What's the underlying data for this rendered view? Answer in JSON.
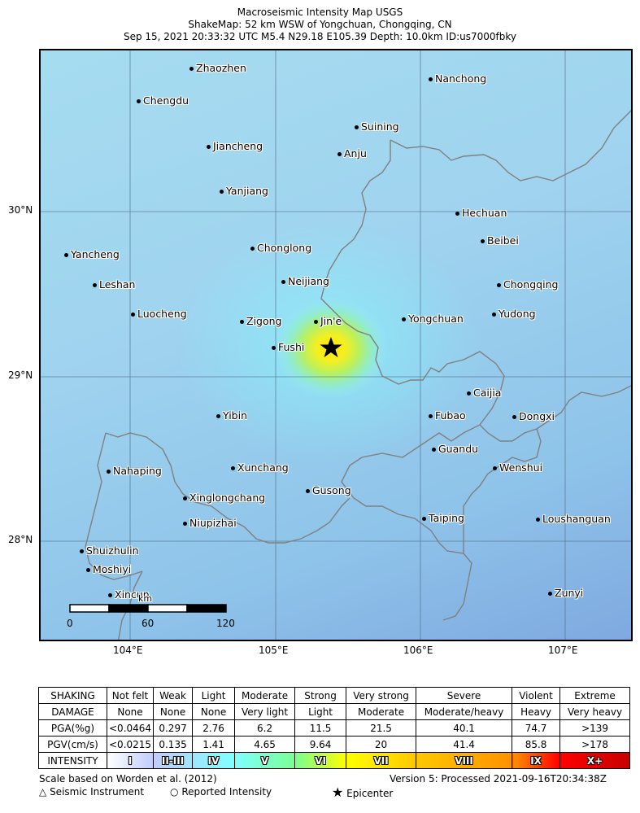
{
  "header": {
    "line1": "Macroseismic Intensity Map USGS",
    "line2": "ShakeMap: 52 km WSW of Yongchuan, Chongqing, CN",
    "line3": "Sep 15, 2021 20:33:32 UTC M5.4 N29.18 E105.39 Depth: 10.0km ID:us7000fbky"
  },
  "map": {
    "lat_labels": [
      "30°N",
      "29°N",
      "28°N"
    ],
    "lon_labels": [
      "104°E",
      "105°E",
      "106°E",
      "107°E"
    ],
    "cities": [
      {
        "name": "Zhaozhen"
      },
      {
        "name": "Nanchong"
      },
      {
        "name": "Chengdu"
      },
      {
        "name": "Suining"
      },
      {
        "name": "Jiancheng"
      },
      {
        "name": "Anju"
      },
      {
        "name": "Yanjiang"
      },
      {
        "name": "Hechuan"
      },
      {
        "name": "Beibei"
      },
      {
        "name": "Chonglong"
      },
      {
        "name": "Yancheng"
      },
      {
        "name": "Neijiang"
      },
      {
        "name": "Leshan"
      },
      {
        "name": "Chongqing"
      },
      {
        "name": "Luocheng"
      },
      {
        "name": "Zigong"
      },
      {
        "name": "Jin'e"
      },
      {
        "name": "Yongchuan"
      },
      {
        "name": "Yudong"
      },
      {
        "name": "Fushi"
      },
      {
        "name": "Caijia"
      },
      {
        "name": "Yibin"
      },
      {
        "name": "Fubao"
      },
      {
        "name": "Dongxi"
      },
      {
        "name": "Guandu"
      },
      {
        "name": "Xunchang"
      },
      {
        "name": "Wenshui"
      },
      {
        "name": "Nahaping"
      },
      {
        "name": "Gusong"
      },
      {
        "name": "Xinglongchang"
      },
      {
        "name": "Taiping"
      },
      {
        "name": "Loushanguan"
      },
      {
        "name": "Niupizhai"
      },
      {
        "name": "Shuizhulin"
      },
      {
        "name": "Moshiyi"
      },
      {
        "name": "Xincun"
      },
      {
        "name": "Zunyi"
      }
    ],
    "scale_bar": {
      "unit": "km",
      "ticks": [
        "0",
        "60",
        "120"
      ]
    }
  },
  "legend": {
    "rows": [
      {
        "label": "SHAKING",
        "cells": [
          "Not felt",
          "Weak",
          "Light",
          "Moderate",
          "Strong",
          "Very strong",
          "Severe",
          "Violent",
          "Extreme"
        ]
      },
      {
        "label": "DAMAGE",
        "cells": [
          "None",
          "None",
          "None",
          "Very light",
          "Light",
          "Moderate",
          "Moderate/heavy",
          "Heavy",
          "Very heavy"
        ]
      },
      {
        "label": "PGA(%g)",
        "cells": [
          "<0.0464",
          "0.297",
          "2.76",
          "6.2",
          "11.5",
          "21.5",
          "40.1",
          "74.7",
          ">139"
        ]
      },
      {
        "label": "PGV(cm/s)",
        "cells": [
          "<0.0215",
          "0.135",
          "1.41",
          "4.65",
          "9.64",
          "20",
          "41.4",
          "85.8",
          ">178"
        ]
      }
    ],
    "intensity_label": "INTENSITY",
    "intensities": [
      "I",
      "II-III",
      "IV",
      "V",
      "VI",
      "VII",
      "VIII",
      "IX",
      "X+"
    ],
    "intensity_colors": [
      "#ffffff",
      "#bfccff",
      "#a0e6ff",
      "#80ffff",
      "#7aff93",
      "#ffff00",
      "#ffc800",
      "#ff9100",
      "#ff0000",
      "#c80000"
    ]
  },
  "footer": {
    "scale_note": "Scale based on Worden et al. (2012)",
    "version": "Version 5: Processed 2021-09-16T20:34:38Z",
    "seismic_instrument": "Seismic Instrument",
    "reported_intensity": "Reported Intensity",
    "epicenter": "Epicenter"
  }
}
